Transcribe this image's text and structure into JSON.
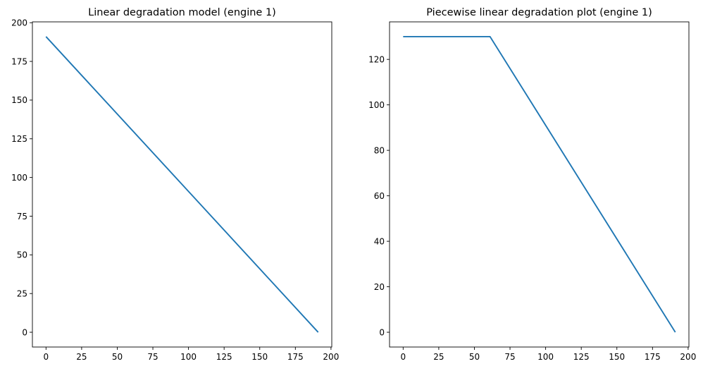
{
  "chart_data": [
    {
      "type": "line",
      "title": "Linear degradation model (engine 1)",
      "xlabel": "",
      "ylabel": "",
      "xlim": [
        -9.55,
        200.55
      ],
      "ylim": [
        -9.55,
        200.55
      ],
      "xticks": [
        0,
        25,
        50,
        75,
        100,
        125,
        150,
        175,
        200
      ],
      "yticks": [
        0,
        25,
        50,
        75,
        100,
        125,
        150,
        175,
        200
      ],
      "grid": false,
      "series": [
        {
          "color": "#1f77b4",
          "x": [
            0,
            191
          ],
          "y": [
            191,
            0
          ]
        }
      ]
    },
    {
      "type": "line",
      "title": "Piecewise linear degradation plot (engine 1)",
      "xlabel": "",
      "ylabel": "",
      "xlim": [
        -9.55,
        200.55
      ],
      "ylim": [
        -6.5,
        136.5
      ],
      "xticks": [
        0,
        25,
        50,
        75,
        100,
        125,
        150,
        175,
        200
      ],
      "yticks": [
        0,
        20,
        40,
        60,
        80,
        100,
        120
      ],
      "grid": false,
      "series": [
        {
          "color": "#1f77b4",
          "x": [
            0,
            61,
            191
          ],
          "y": [
            130,
            130,
            0
          ]
        }
      ]
    }
  ]
}
